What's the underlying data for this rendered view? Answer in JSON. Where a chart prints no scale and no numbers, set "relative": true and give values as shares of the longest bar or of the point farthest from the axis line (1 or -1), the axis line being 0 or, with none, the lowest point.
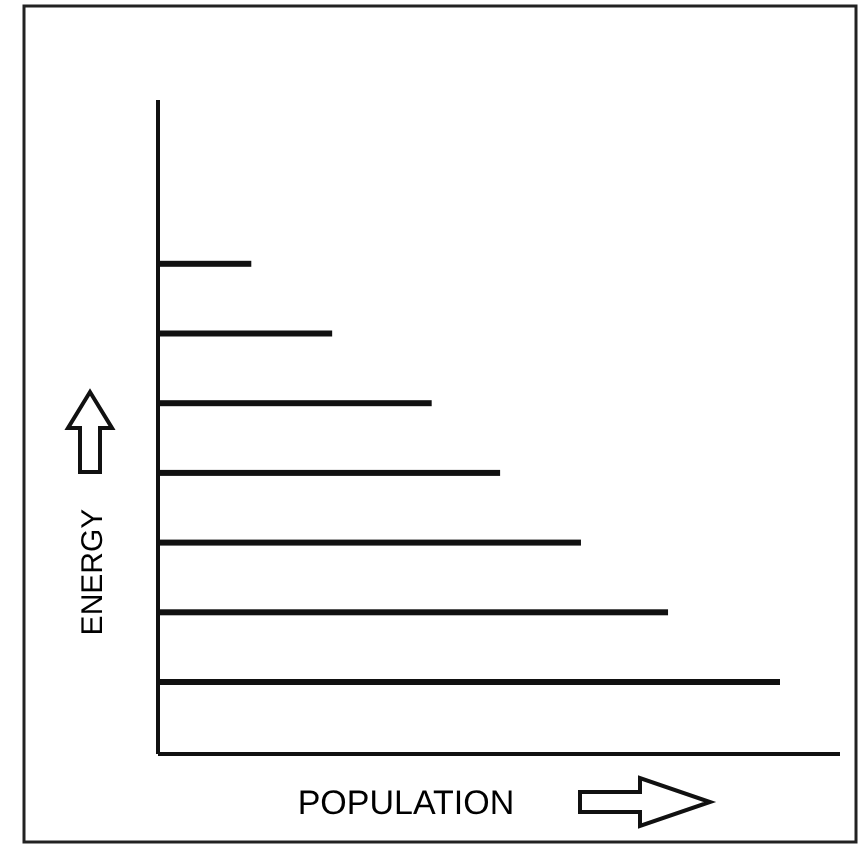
{
  "chart_data": {
    "type": "bar",
    "orientation": "horizontal",
    "relative": true,
    "xlabel": "POPULATION",
    "ylabel": "ENERGY",
    "color": "#111111",
    "categories": [
      null,
      null,
      null,
      null,
      null,
      null,
      null
    ],
    "values": [
      0.15,
      0.28,
      0.44,
      0.55,
      0.68,
      0.82,
      1
    ]
  }
}
